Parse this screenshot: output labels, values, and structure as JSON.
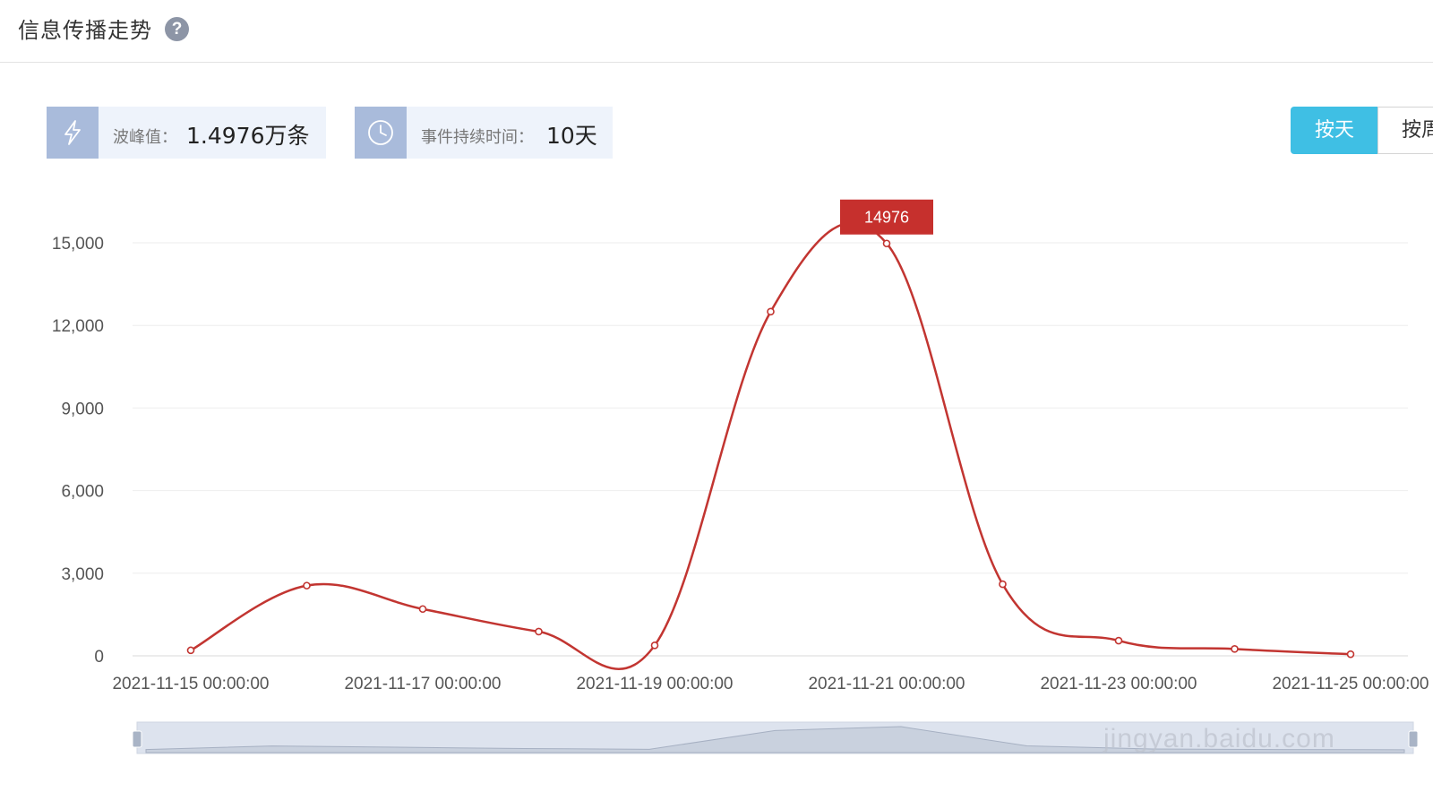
{
  "header": {
    "title": "信息传播走势",
    "help_icon": "question-circle-icon"
  },
  "stats": {
    "peak": {
      "icon": "lightning-icon",
      "label": "波峰值：",
      "value": "1.4976万条"
    },
    "duration": {
      "icon": "clock-icon",
      "label": "事件持续时间：",
      "value": "10天"
    }
  },
  "toggle": {
    "day_label": "按天",
    "week_label": "按周",
    "active": "day"
  },
  "colors": {
    "line": "#c23531",
    "accent": "#3fbfe4",
    "card_bg": "#eef3fb",
    "card_icon_bg": "#a9bbdb"
  },
  "watermark": {
    "text": "jingyan.baidu.com"
  },
  "chart_data": {
    "type": "line",
    "smooth": true,
    "title": "",
    "xlabel": "",
    "ylabel": "",
    "x": [
      "2021-11-15 00:00:00",
      "2021-11-16 00:00:00",
      "2021-11-17 00:00:00",
      "2021-11-18 00:00:00",
      "2021-11-19 00:00:00",
      "2021-11-20 00:00:00",
      "2021-11-21 00:00:00",
      "2021-11-22 00:00:00",
      "2021-11-23 00:00:00",
      "2021-11-24 00:00:00",
      "2021-11-25 00:00:00"
    ],
    "values": [
      200,
      2550,
      1700,
      880,
      380,
      12500,
      14976,
      2600,
      550,
      250,
      60
    ],
    "x_tick_labels": [
      "2021-11-15 00:00:00",
      "2021-11-17 00:00:00",
      "2021-11-19 00:00:00",
      "2021-11-21 00:00:00",
      "2021-11-23 00:00:00",
      "2021-11-25 00:00:00"
    ],
    "y_ticks": [
      0,
      3000,
      6000,
      9000,
      12000,
      15000
    ],
    "y_tick_labels": [
      "0",
      "3,000",
      "6,000",
      "9,000",
      "12,000",
      "15,000"
    ],
    "ylim": [
      0,
      15000
    ],
    "grid": true,
    "peak_label": "14976",
    "data_zoom": true
  }
}
